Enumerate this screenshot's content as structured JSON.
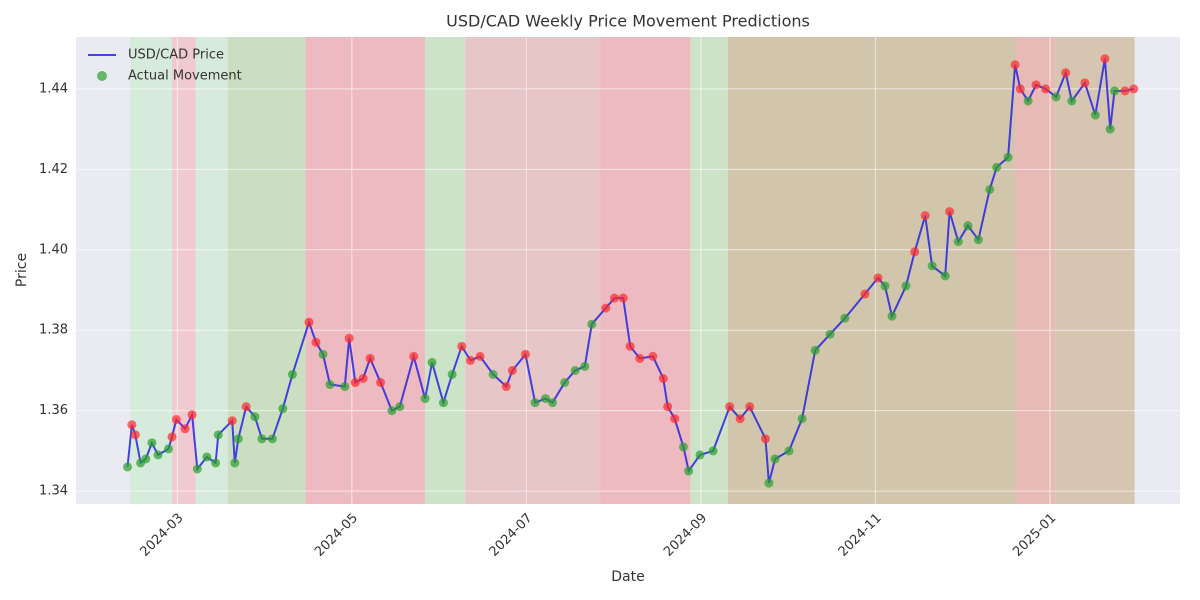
{
  "chart_data": {
    "type": "line",
    "title": "USD/CAD Weekly Price Movement Predictions",
    "x_label": "Date",
    "y_label": "Price",
    "xlim": [
      0.84,
      13.49
    ],
    "xticks": [
      {
        "value": 2,
        "label": "2024-03"
      },
      {
        "value": 4,
        "label": "2024-05"
      },
      {
        "value": 6,
        "label": "2024-07"
      },
      {
        "value": 8,
        "label": "2024-09"
      },
      {
        "value": 10,
        "label": "2024-11"
      },
      {
        "value": 12,
        "label": "2025-01"
      }
    ],
    "ylim": [
      1.3368,
      1.4529
    ],
    "yticks": [
      1.34,
      1.36,
      1.38,
      {
        "value": 1.4,
        "label": "1.40"
      },
      1.42,
      1.44
    ],
    "grid": true,
    "legend": "upper left",
    "x": [
      1.43,
      1.48,
      1.52,
      1.58,
      1.64,
      1.71,
      1.78,
      1.9,
      1.94,
      1.99,
      2.09,
      2.17,
      2.23,
      2.34,
      2.44,
      2.47,
      2.63,
      2.66,
      2.7,
      2.79,
      2.89,
      2.97,
      3.09,
      3.21,
      3.32,
      3.51,
      3.59,
      3.67,
      3.75,
      3.92,
      3.97,
      4.04,
      4.13,
      4.21,
      4.33,
      4.46,
      4.55,
      4.71,
      4.84,
      4.92,
      5.05,
      5.15,
      5.26,
      5.36,
      5.47,
      5.62,
      5.77,
      5.84,
      5.99,
      6.1,
      6.22,
      6.3,
      6.44,
      6.56,
      6.67,
      6.75,
      6.91,
      7.01,
      7.11,
      7.19,
      7.3,
      7.45,
      7.57,
      7.62,
      7.7,
      7.8,
      7.86,
      7.99,
      8.14,
      8.33,
      8.45,
      8.56,
      8.74,
      8.78,
      8.85,
      9.01,
      9.16,
      9.31,
      9.48,
      9.65,
      9.88,
      10.03,
      10.11,
      10.19,
      10.35,
      10.45,
      10.57,
      10.65,
      10.8,
      10.85,
      10.95,
      11.06,
      11.18,
      11.31,
      11.39,
      11.52,
      11.6,
      11.66,
      11.75,
      11.84,
      11.95,
      12.07,
      12.18,
      12.25,
      12.4,
      12.52,
      12.63,
      12.69,
      12.74,
      12.86,
      12.96
    ],
    "series": [
      {
        "name": "USD/CAD Price",
        "color": "#1a1ae0",
        "values": [
          1.346,
          1.3565,
          1.354,
          1.347,
          1.348,
          1.352,
          1.349,
          1.3505,
          1.3535,
          1.3578,
          1.3555,
          1.359,
          1.3455,
          1.3485,
          1.347,
          1.354,
          1.3575,
          1.347,
          1.353,
          1.361,
          1.3585,
          1.353,
          1.353,
          1.3605,
          1.369,
          1.382,
          1.377,
          1.374,
          1.3665,
          1.366,
          1.378,
          1.367,
          1.368,
          1.373,
          1.367,
          1.36,
          1.361,
          1.3735,
          1.363,
          1.372,
          1.362,
          1.369,
          1.376,
          1.3725,
          1.3735,
          1.369,
          1.366,
          1.37,
          1.374,
          1.362,
          1.363,
          1.362,
          1.367,
          1.37,
          1.371,
          1.3815,
          1.3855,
          1.388,
          1.388,
          1.376,
          1.373,
          1.3735,
          1.368,
          1.361,
          1.358,
          1.351,
          1.345,
          1.349,
          1.35,
          1.361,
          1.358,
          1.361,
          1.353,
          1.342,
          1.348,
          1.35,
          1.358,
          1.375,
          1.379,
          1.383,
          1.389,
          1.393,
          1.391,
          1.3835,
          1.391,
          1.3995,
          1.4085,
          1.396,
          1.3935,
          1.4095,
          1.402,
          1.406,
          1.4025,
          1.415,
          1.4205,
          1.423,
          1.446,
          1.44,
          1.437,
          1.441,
          1.44,
          1.438,
          1.444,
          1.437,
          1.4415,
          1.4335,
          1.4475,
          1.43,
          1.4395,
          1.4395,
          1.44
        ]
      }
    ],
    "markers": {
      "name": "Actual Movement",
      "up_color": "#2ca02c",
      "down_color": "#ff2a2a",
      "movement": [
        "up",
        "down",
        "down",
        "up",
        "up",
        "up",
        "up",
        "up",
        "down",
        "down",
        "down",
        "down",
        "up",
        "up",
        "up",
        "up",
        "down",
        "up",
        "up",
        "down",
        "up",
        "up",
        "up",
        "up",
        "up",
        "down",
        "down",
        "up",
        "up",
        "up",
        "down",
        "down",
        "down",
        "down",
        "down",
        "up",
        "up",
        "down",
        "up",
        "up",
        "up",
        "up",
        "down",
        "down",
        "down",
        "up",
        "down",
        "down",
        "down",
        "up",
        "up",
        "up",
        "up",
        "up",
        "up",
        "up",
        "down",
        "down",
        "down",
        "down",
        "down",
        "down",
        "down",
        "down",
        "down",
        "up",
        "up",
        "up",
        "up",
        "down",
        "down",
        "down",
        "down",
        "up",
        "up",
        "up",
        "up",
        "up",
        "up",
        "up",
        "down",
        "down",
        "up",
        "up",
        "up",
        "down",
        "down",
        "up",
        "up",
        "down",
        "up",
        "up",
        "up",
        "up",
        "up",
        "up",
        "down",
        "down",
        "up",
        "down",
        "down",
        "up",
        "down",
        "up",
        "down",
        "up",
        "down",
        "up",
        "up",
        "down",
        "down"
      ]
    },
    "bands": [
      {
        "start": 1.46,
        "end": 1.94,
        "color": "#d3ebd8"
      },
      {
        "start": 1.94,
        "end": 2.21,
        "color": "#f2c4cb"
      },
      {
        "start": 2.21,
        "end": 2.58,
        "color": "#d3ebd8"
      },
      {
        "start": 2.58,
        "end": 3.47,
        "color": "#c6dcb8"
      },
      {
        "start": 3.47,
        "end": 4.84,
        "color": "#efb1b8"
      },
      {
        "start": 4.84,
        "end": 5.3,
        "color": "#c8e2bf"
      },
      {
        "start": 5.3,
        "end": 6.85,
        "color": "#e6c0c0"
      },
      {
        "start": 6.85,
        "end": 7.88,
        "color": "#efb1b8"
      },
      {
        "start": 7.88,
        "end": 8.31,
        "color": "#c8e2bf"
      },
      {
        "start": 8.31,
        "end": 11.6,
        "color": "#ccc0a0"
      },
      {
        "start": 11.6,
        "end": 12.06,
        "color": "#e6b2aa"
      },
      {
        "start": 12.06,
        "end": 12.97,
        "color": "#d2bfa6"
      }
    ]
  }
}
